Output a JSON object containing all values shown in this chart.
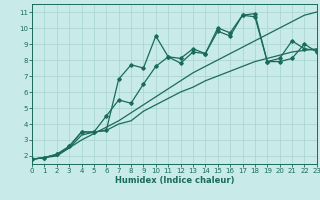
{
  "xlabel": "Humidex (Indice chaleur)",
  "bg_color": "#c8eae8",
  "grid_color": "#a8d4d0",
  "line_color": "#1a6b5a",
  "xlim": [
    0,
    23
  ],
  "ylim": [
    1.5,
    11.5
  ],
  "xticks": [
    0,
    1,
    2,
    3,
    4,
    5,
    6,
    7,
    8,
    9,
    10,
    11,
    12,
    13,
    14,
    15,
    16,
    17,
    18,
    19,
    20,
    21,
    22,
    23
  ],
  "yticks": [
    2,
    3,
    4,
    5,
    6,
    7,
    8,
    9,
    10,
    11
  ],
  "series": [
    {
      "x": [
        0,
        1,
        2,
        3,
        4,
        5,
        6,
        7,
        8,
        9,
        10,
        11,
        12,
        13,
        14,
        15,
        16,
        17,
        18,
        19,
        20,
        21,
        22,
        23
      ],
      "y": [
        1.8,
        1.9,
        2.1,
        2.5,
        3.0,
        3.4,
        3.8,
        4.2,
        4.7,
        5.2,
        5.7,
        6.2,
        6.7,
        7.2,
        7.6,
        8.0,
        8.4,
        8.8,
        9.2,
        9.6,
        10.0,
        10.4,
        10.8,
        11.0
      ],
      "marker": false,
      "lw": 0.9
    },
    {
      "x": [
        0,
        1,
        2,
        3,
        4,
        5,
        6,
        7,
        8,
        9,
        10,
        11,
        12,
        13,
        14,
        15,
        16,
        17,
        18,
        19,
        20,
        21,
        22,
        23
      ],
      "y": [
        1.8,
        1.9,
        2.1,
        2.6,
        3.5,
        3.5,
        3.6,
        6.8,
        7.7,
        7.5,
        9.5,
        8.2,
        8.1,
        8.7,
        8.4,
        10.0,
        9.7,
        10.8,
        10.9,
        7.9,
        8.1,
        9.2,
        8.7,
        8.6
      ],
      "marker": true,
      "lw": 0.9
    },
    {
      "x": [
        0,
        1,
        2,
        3,
        4,
        5,
        6,
        7,
        8,
        9,
        10,
        11,
        12,
        13,
        14,
        15,
        16,
        17,
        18,
        19,
        20,
        21,
        22,
        23
      ],
      "y": [
        1.8,
        1.9,
        2.1,
        2.6,
        3.5,
        3.5,
        4.5,
        5.5,
        5.3,
        6.5,
        7.6,
        8.2,
        7.8,
        8.5,
        8.4,
        9.8,
        9.5,
        10.8,
        10.7,
        7.9,
        7.9,
        8.1,
        9.0,
        8.5
      ],
      "marker": true,
      "lw": 0.9
    },
    {
      "x": [
        0,
        1,
        2,
        3,
        4,
        5,
        6,
        7,
        8,
        9,
        10,
        11,
        12,
        13,
        14,
        15,
        16,
        17,
        18,
        19,
        20,
        21,
        22,
        23
      ],
      "y": [
        1.8,
        1.9,
        2.0,
        2.5,
        3.3,
        3.5,
        3.6,
        4.0,
        4.2,
        4.8,
        5.2,
        5.6,
        6.0,
        6.3,
        6.7,
        7.0,
        7.3,
        7.6,
        7.9,
        8.1,
        8.3,
        8.5,
        8.6,
        8.7
      ],
      "marker": false,
      "lw": 0.9
    }
  ]
}
